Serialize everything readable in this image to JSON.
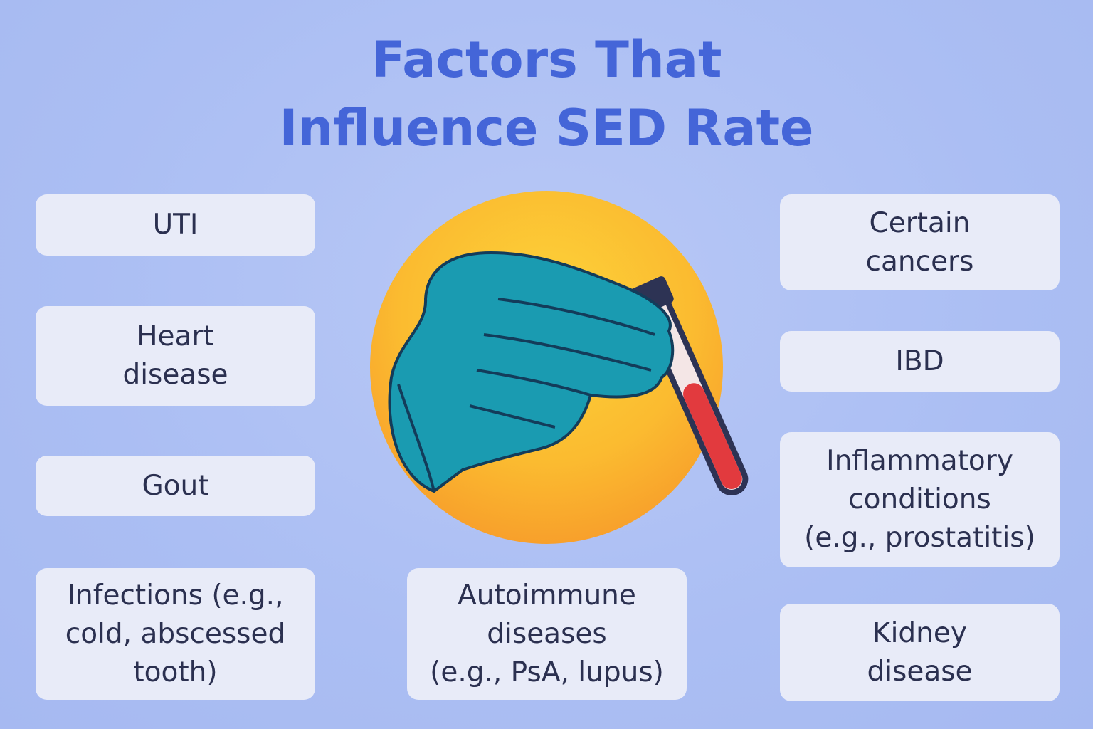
{
  "title": {
    "lines": [
      "Factors That",
      "Influence SED Rate"
    ]
  },
  "boxes": [
    {
      "lines": [
        "UTI"
      ]
    },
    {
      "lines": [
        "Heart",
        "disease"
      ]
    },
    {
      "lines": [
        "Gout"
      ]
    },
    {
      "lines": [
        "Infections (e.g.,",
        "cold, abscessed",
        "tooth)"
      ]
    },
    {
      "lines": [
        "Autoimmune",
        "diseases",
        "(e.g., PsA, lupus)"
      ]
    },
    {
      "lines": [
        "Certain",
        "cancers"
      ]
    },
    {
      "lines": [
        "IBD"
      ]
    },
    {
      "lines": [
        "Inflammatory",
        "conditions",
        "(e.g., prostatitis)"
      ]
    },
    {
      "lines": [
        "Kidney",
        "disease"
      ]
    }
  ]
}
